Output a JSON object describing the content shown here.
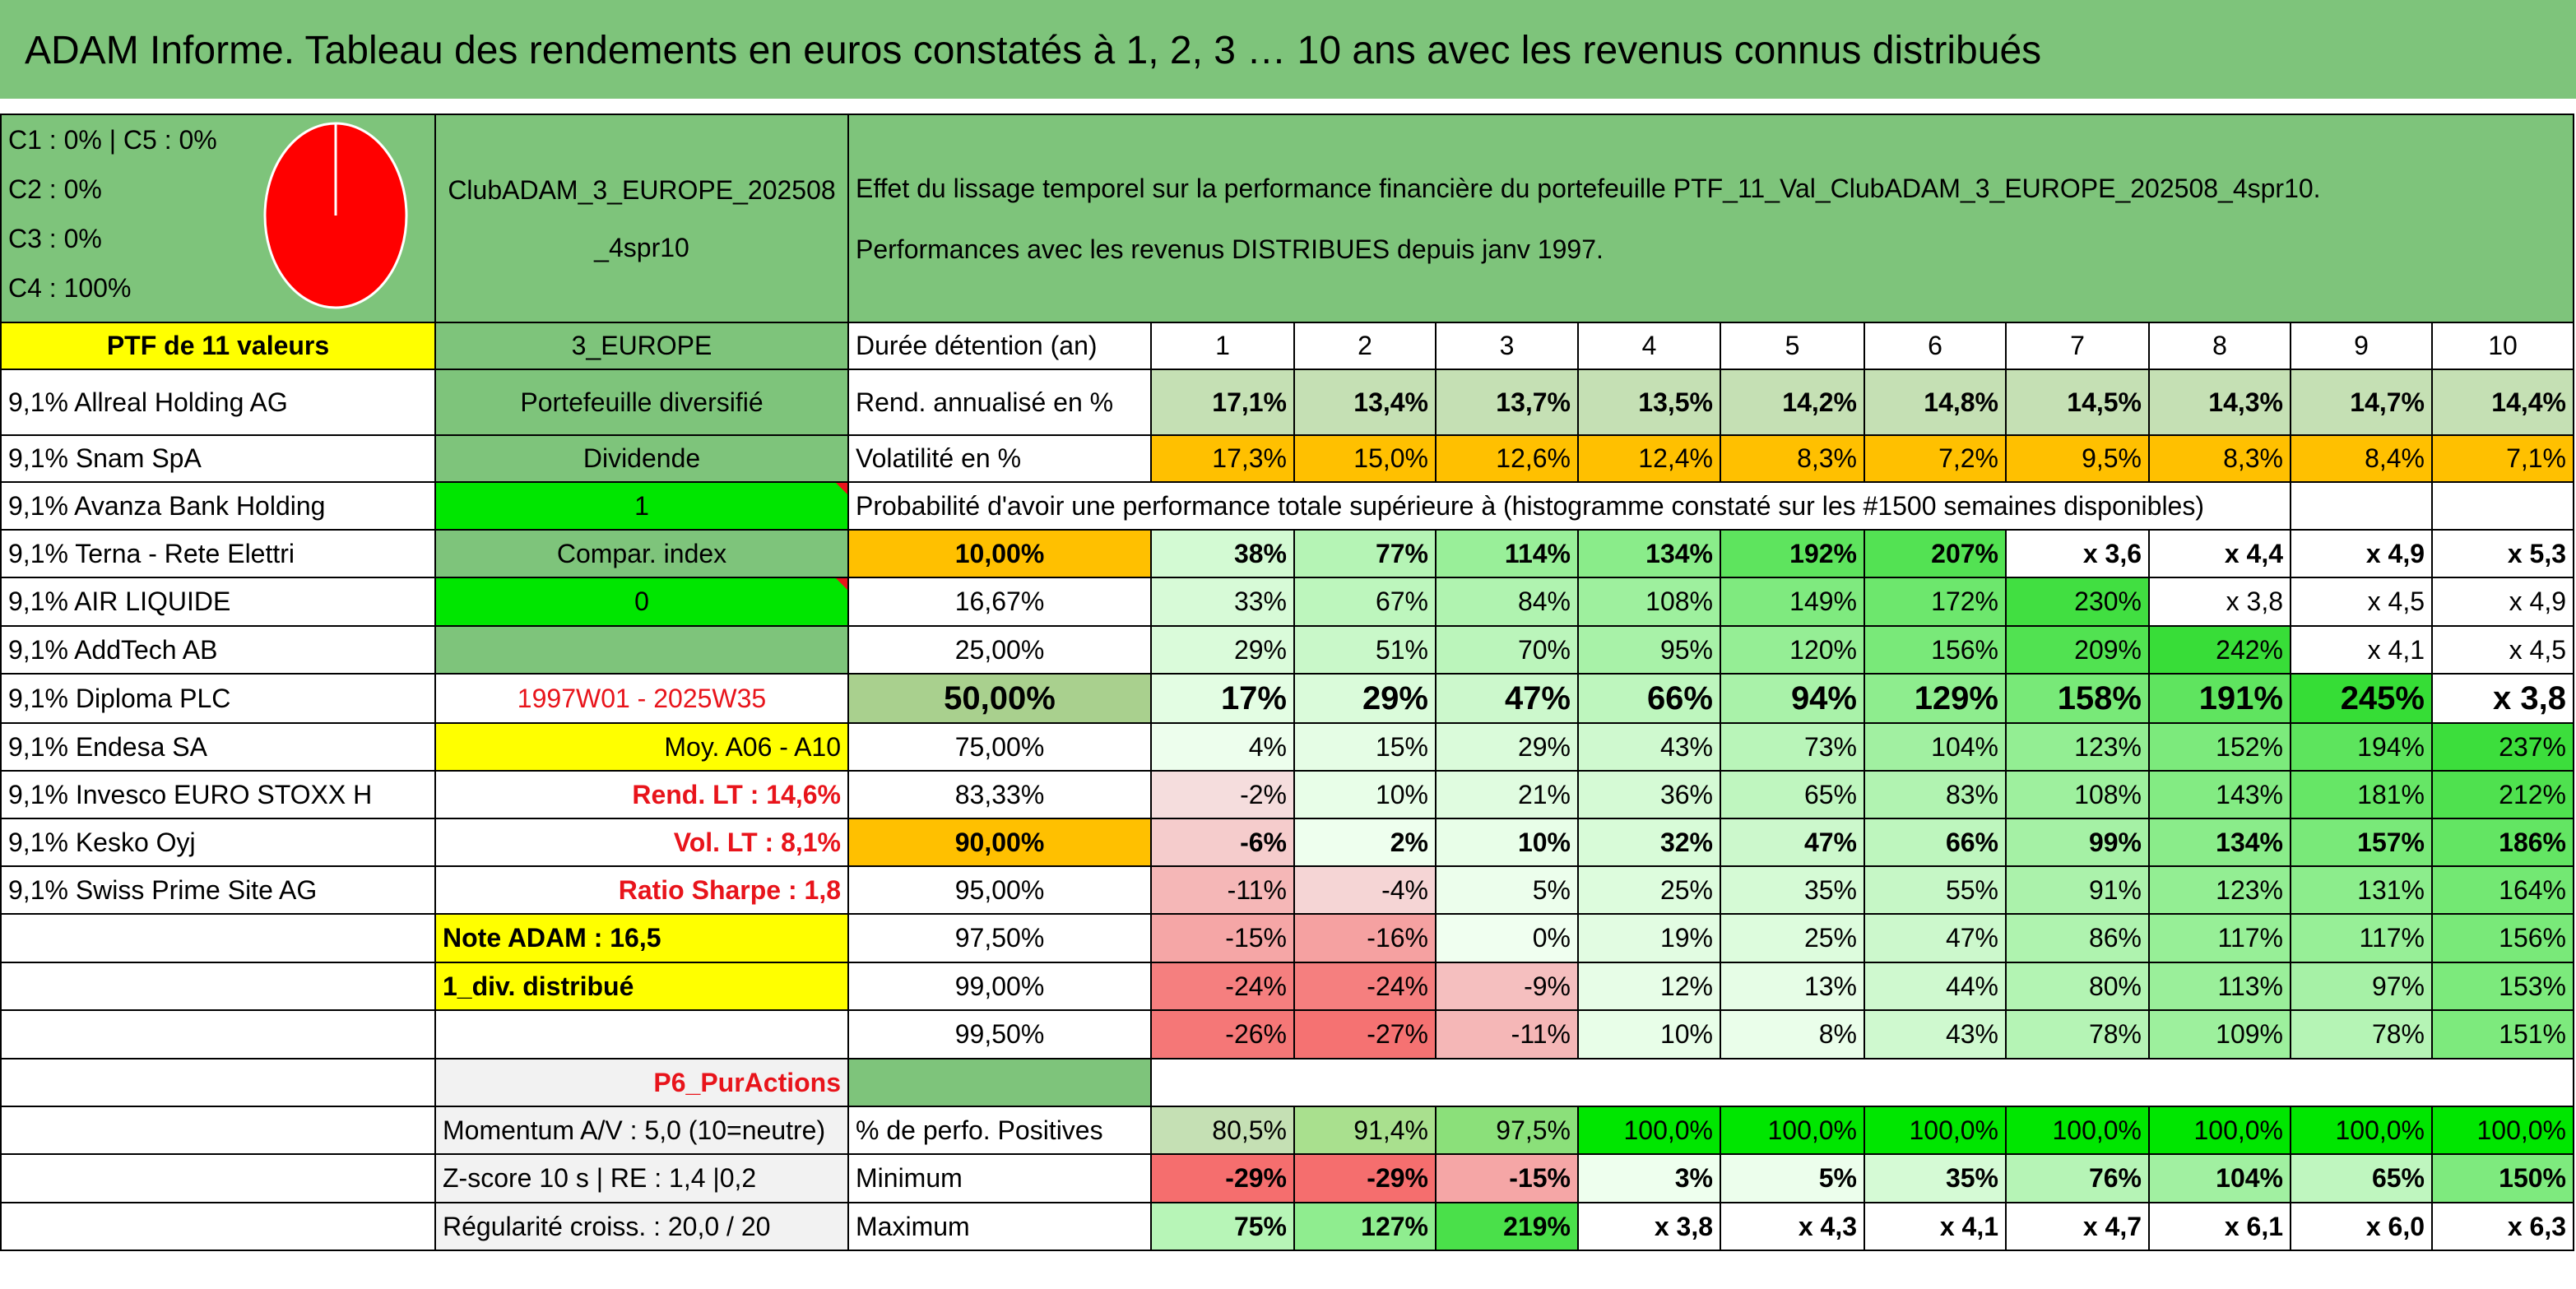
{
  "title": "ADAM Informe. Tableau des rendements en euros constatés à 1, 2, 3 … 10 ans avec les revenus connus distribués",
  "allocations": [
    "C1 : 0% | C5 : 0%",
    "C2 : 0%",
    "C3 : 0%",
    "C4 : 100%"
  ],
  "pie": {
    "C1": 0,
    "C2": 0,
    "C3": 0,
    "C4": 100,
    "C5": 0,
    "color": "#ff0000",
    "stroke": "#ffffff"
  },
  "portfolio_name": "ClubADAM_3_EUROPE_202508_4spr10",
  "intro_line1": "Effet du lissage temporel sur la performance financière du portefeuille PTF_11_Val_ClubADAM_3_EUROPE_202508_4spr10.",
  "intro_line2": "Performances avec les revenus DISTRIBUES depuis janv 1997.",
  "ptf_label": "PTF de 11 valeurs",
  "category": "3_EUROPE",
  "holdings": [
    "9,1% Allreal Holding AG",
    "9,1% Snam SpA",
    "9,1% Avanza Bank Holding",
    "9,1% Terna - Rete Elettri",
    "9,1% AIR LIQUIDE",
    "9,1% AddTech AB",
    "9,1% Diploma PLC",
    "9,1% Endesa SA",
    "9,1% Invesco EURO STOXX H",
    "9,1% Kesko Oyj",
    "9,1% Swiss Prime Site AG"
  ],
  "info": {
    "diversified": "Portefeuille diversifié",
    "dividend": "Dividende",
    "dividend_value": "1",
    "compar_index": "Compar. index",
    "compar_value": "0",
    "period": "1997W01 - 2025W35",
    "moy": "Moy. A06 - A10",
    "rend_lt": "Rend. LT : 14,6%",
    "vol_lt": "Vol. LT : 8,1%",
    "sharpe": "Ratio Sharpe : 1,8",
    "note": "Note ADAM : 16,5",
    "div": "1_div. distribué",
    "p6": "P6_PurActions",
    "momentum": "Momentum A/V : 5,0 (10=neutre)",
    "zscore": "Z-score 10 s | RE : 1,4 |0,2",
    "regularite": "Régularité croiss. : 20,0 / 20"
  },
  "labels": {
    "duration": "Durée détention (an)",
    "rend": "Rend. annualisé en %",
    "vol": "Volatilité en %",
    "proba": "Probabilité d'avoir une performance totale supérieure à (histogramme constaté sur les #1500 semaines disponibles)",
    "positives": "% de perfo. Positives",
    "minimum": "Minimum",
    "maximum": "Maximum"
  },
  "years": [
    "1",
    "2",
    "3",
    "4",
    "5",
    "6",
    "7",
    "8",
    "9",
    "10"
  ],
  "rend": [
    "17,1%",
    "13,4%",
    "13,7%",
    "13,5%",
    "14,2%",
    "14,8%",
    "14,5%",
    "14,3%",
    "14,7%",
    "14,4%"
  ],
  "vol": [
    "17,3%",
    "15,0%",
    "12,6%",
    "12,4%",
    "8,3%",
    "7,2%",
    "9,5%",
    "8,3%",
    "8,4%",
    "7,1%"
  ],
  "proba_rows": [
    {
      "p": "10,00%",
      "v": [
        "38%",
        "77%",
        "114%",
        "134%",
        "192%",
        "207%",
        "x 3,6",
        "x 4,4",
        "x 4,9",
        "x 5,3"
      ]
    },
    {
      "p": "16,67%",
      "v": [
        "33%",
        "67%",
        "84%",
        "108%",
        "149%",
        "172%",
        "230%",
        "x 3,8",
        "x 4,5",
        "x 4,9"
      ]
    },
    {
      "p": "25,00%",
      "v": [
        "29%",
        "51%",
        "70%",
        "95%",
        "120%",
        "156%",
        "209%",
        "242%",
        "x 4,1",
        "x 4,5"
      ]
    },
    {
      "p": "50,00%",
      "v": [
        "17%",
        "29%",
        "47%",
        "66%",
        "94%",
        "129%",
        "158%",
        "191%",
        "245%",
        "x 3,8"
      ]
    },
    {
      "p": "75,00%",
      "v": [
        "4%",
        "15%",
        "29%",
        "43%",
        "73%",
        "104%",
        "123%",
        "152%",
        "194%",
        "237%"
      ]
    },
    {
      "p": "83,33%",
      "v": [
        "-2%",
        "10%",
        "21%",
        "36%",
        "65%",
        "83%",
        "108%",
        "143%",
        "181%",
        "212%"
      ]
    },
    {
      "p": "90,00%",
      "v": [
        "-6%",
        "2%",
        "10%",
        "32%",
        "47%",
        "66%",
        "99%",
        "134%",
        "157%",
        "186%"
      ]
    },
    {
      "p": "95,00%",
      "v": [
        "-11%",
        "-4%",
        "5%",
        "25%",
        "35%",
        "55%",
        "91%",
        "123%",
        "131%",
        "164%"
      ]
    },
    {
      "p": "97,50%",
      "v": [
        "-15%",
        "-16%",
        "0%",
        "19%",
        "25%",
        "47%",
        "86%",
        "117%",
        "117%",
        "156%"
      ]
    },
    {
      "p": "99,00%",
      "v": [
        "-24%",
        "-24%",
        "-9%",
        "12%",
        "13%",
        "44%",
        "80%",
        "113%",
        "97%",
        "153%"
      ]
    },
    {
      "p": "99,50%",
      "v": [
        "-26%",
        "-27%",
        "-11%",
        "10%",
        "8%",
        "43%",
        "78%",
        "109%",
        "78%",
        "151%"
      ]
    }
  ],
  "positives": [
    "80,5%",
    "91,4%",
    "97,5%",
    "100,0%",
    "100,0%",
    "100,0%",
    "100,0%",
    "100,0%",
    "100,0%",
    "100,0%"
  ],
  "minimum": [
    "-29%",
    "-29%",
    "-15%",
    "3%",
    "5%",
    "35%",
    "76%",
    "104%",
    "65%",
    "150%"
  ],
  "maximum": [
    "75%",
    "127%",
    "219%",
    "x 3,8",
    "x 4,3",
    "x 4,1",
    "x 4,7",
    "x 6,1",
    "x 6,0",
    "x 6,3"
  ],
  "colors": {
    "title_green": "#7ec47b",
    "mid_green": "#7ec47b",
    "light_green": "#c5e0b4",
    "yellow": "#ffff00",
    "orange": "#ffc000",
    "bright_green": "#00e600",
    "red_text": "#e8141b"
  }
}
